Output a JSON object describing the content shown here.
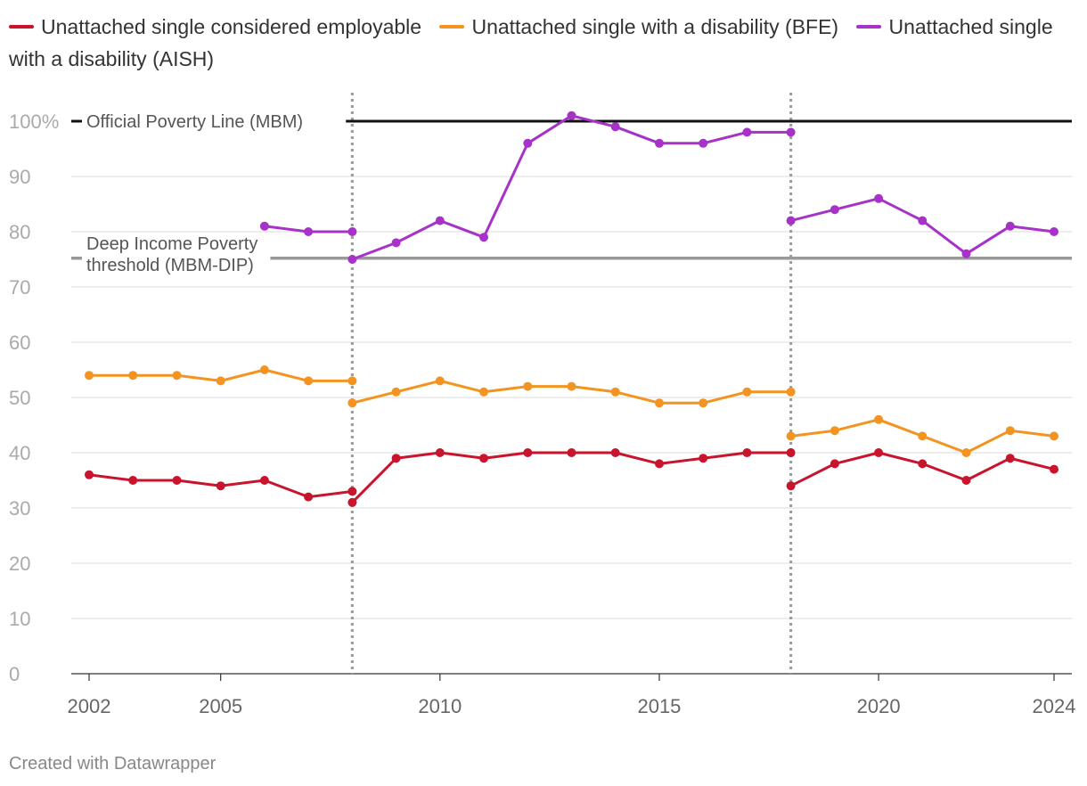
{
  "legend": [
    {
      "label": "Unattached single considered employable",
      "color": "#c8142d"
    },
    {
      "label": "Unattached single with a disability (BFE)",
      "color": "#f2941f"
    },
    {
      "label": "Unattached single with a disability (AISH)",
      "color": "#a632c8"
    }
  ],
  "footer": "Created with Datawrapper",
  "chart_data": {
    "type": "line",
    "title": "",
    "xlabel": "",
    "ylabel": "",
    "xlim": [
      2002,
      2024
    ],
    "ylim": [
      0,
      100
    ],
    "x_ticks": [
      2002,
      2005,
      2010,
      2015,
      2020,
      2024
    ],
    "y_ticks": [
      {
        "value": 0,
        "label": "0"
      },
      {
        "value": 10,
        "label": "10"
      },
      {
        "value": 20,
        "label": "20"
      },
      {
        "value": 30,
        "label": "30"
      },
      {
        "value": 40,
        "label": "40"
      },
      {
        "value": 50,
        "label": "50"
      },
      {
        "value": 60,
        "label": "60"
      },
      {
        "value": 70,
        "label": "70"
      },
      {
        "value": 80,
        "label": "80"
      },
      {
        "value": 90,
        "label": "90"
      },
      {
        "value": 100,
        "label": "100%"
      }
    ],
    "reference_lines": [
      {
        "name": "Official Poverty Line (MBM)",
        "value": 100,
        "label_lines": [
          "Official Poverty Line (MBM)"
        ],
        "color": "#111111"
      },
      {
        "name": "Deep Income Poverty threshold (MBM-DIP)",
        "value": 75.2,
        "label_lines": [
          "Deep Income Poverty",
          "threshold (MBM-DIP)"
        ],
        "color": "#999999"
      }
    ],
    "vertical_markers": [
      2008,
      2018
    ],
    "series": [
      {
        "name": "Unattached single considered employable",
        "color": "#c8142d",
        "segments": [
          [
            [
              2002,
              36
            ],
            [
              2003,
              35
            ],
            [
              2004,
              35
            ],
            [
              2005,
              34
            ],
            [
              2006,
              35
            ],
            [
              2007,
              32
            ],
            [
              2008,
              33
            ]
          ],
          [
            [
              2008,
              31
            ],
            [
              2009,
              39
            ],
            [
              2010,
              40
            ],
            [
              2011,
              39
            ],
            [
              2012,
              40
            ],
            [
              2013,
              40
            ],
            [
              2014,
              40
            ],
            [
              2015,
              38
            ],
            [
              2016,
              39
            ],
            [
              2017,
              40
            ],
            [
              2018,
              40
            ]
          ],
          [
            [
              2018,
              34
            ],
            [
              2019,
              38
            ],
            [
              2020,
              40
            ],
            [
              2021,
              38
            ],
            [
              2022,
              35
            ],
            [
              2023,
              39
            ],
            [
              2024,
              37
            ]
          ]
        ]
      },
      {
        "name": "Unattached single with a disability (BFE)",
        "color": "#f2941f",
        "segments": [
          [
            [
              2002,
              54
            ],
            [
              2003,
              54
            ],
            [
              2004,
              54
            ],
            [
              2005,
              53
            ],
            [
              2006,
              55
            ],
            [
              2007,
              53
            ],
            [
              2008,
              53
            ]
          ],
          [
            [
              2008,
              49
            ],
            [
              2009,
              51
            ],
            [
              2010,
              53
            ],
            [
              2011,
              51
            ],
            [
              2012,
              52
            ],
            [
              2013,
              52
            ],
            [
              2014,
              51
            ],
            [
              2015,
              49
            ],
            [
              2016,
              49
            ],
            [
              2017,
              51
            ],
            [
              2018,
              51
            ]
          ],
          [
            [
              2018,
              43
            ],
            [
              2019,
              44
            ],
            [
              2020,
              46
            ],
            [
              2021,
              43
            ],
            [
              2022,
              40
            ],
            [
              2023,
              44
            ],
            [
              2024,
              43
            ]
          ]
        ]
      },
      {
        "name": "Unattached single with a disability (AISH)",
        "color": "#a632c8",
        "segments": [
          [
            [
              2006,
              81
            ],
            [
              2007,
              80
            ],
            [
              2008,
              80
            ]
          ],
          [
            [
              2008,
              75
            ],
            [
              2009,
              78
            ],
            [
              2010,
              82
            ],
            [
              2011,
              79
            ],
            [
              2012,
              96
            ],
            [
              2013,
              101
            ],
            [
              2014,
              99
            ],
            [
              2015,
              96
            ],
            [
              2016,
              96
            ],
            [
              2017,
              98
            ],
            [
              2018,
              98
            ]
          ],
          [
            [
              2018,
              82
            ],
            [
              2019,
              84
            ],
            [
              2020,
              86
            ],
            [
              2021,
              82
            ],
            [
              2022,
              76
            ],
            [
              2023,
              81
            ],
            [
              2024,
              80
            ]
          ]
        ]
      }
    ]
  }
}
